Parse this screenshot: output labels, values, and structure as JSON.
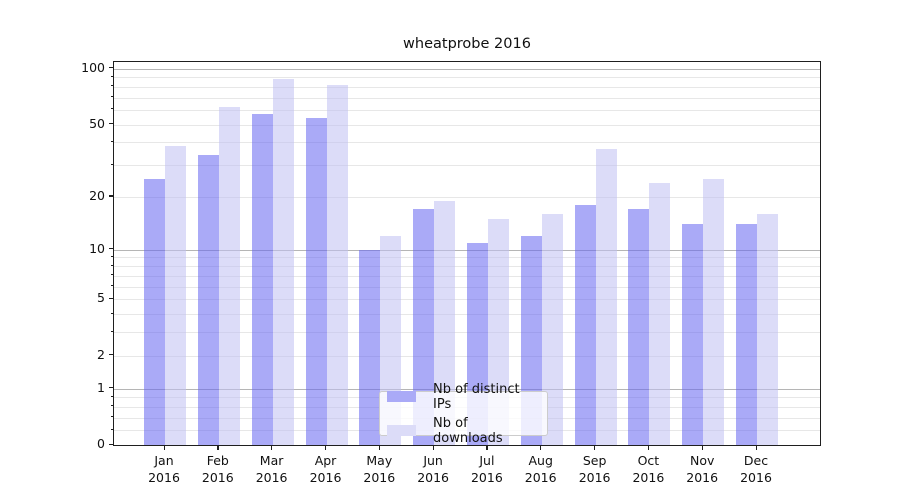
{
  "title": "wheatprobe 2016",
  "chart_data": {
    "type": "bar",
    "title": "wheatprobe 2016",
    "categories": [
      "Jan",
      "Feb",
      "Mar",
      "Apr",
      "May",
      "Jun",
      "Jul",
      "Aug",
      "Sep",
      "Oct",
      "Nov",
      "Dec"
    ],
    "year_label": "2016",
    "series": [
      {
        "name": "Nb of distinct IPs",
        "values": [
          25,
          34,
          57,
          54,
          10,
          17,
          11,
          12,
          18,
          17,
          14,
          14
        ]
      },
      {
        "name": "Nb of downloads",
        "values": [
          38,
          62,
          88,
          82,
          12,
          19,
          15,
          16,
          37,
          24,
          25,
          16
        ]
      }
    ],
    "xlabel": "",
    "ylabel": "",
    "y_scale": "log1p",
    "y_ticks": [
      0,
      1,
      2,
      5,
      10,
      20,
      50,
      100
    ],
    "ylim": [
      0,
      110
    ],
    "grid": "both",
    "legend_position": "lower center"
  },
  "legend": {
    "items": [
      {
        "label": "Nb of distinct IPs",
        "swatch": "ips"
      },
      {
        "label": "Nb of downloads",
        "swatch": "downloads"
      }
    ]
  },
  "colors": {
    "ips_bar": "rgba(100,100,240,0.55)",
    "downloads_bar": "rgba(191,191,242,0.55)",
    "ips_legend": "#aaaaf7",
    "downloads_legend": "#dcdcf8",
    "grid_major": "#b5b5b5",
    "grid_minor": "#e7e7e7",
    "spine": "#1f1f1f"
  }
}
